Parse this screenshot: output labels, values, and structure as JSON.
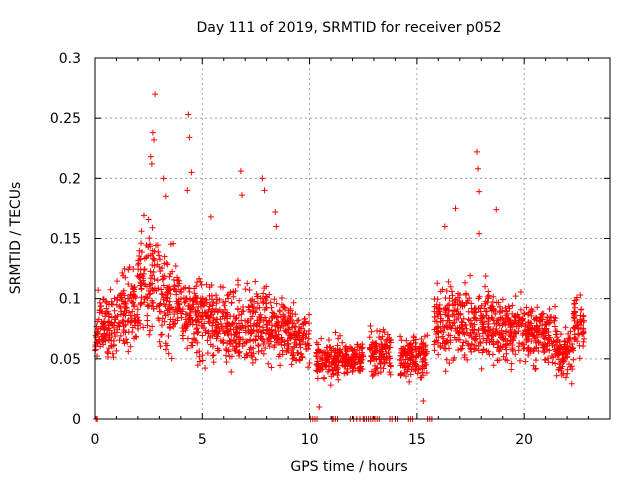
{
  "chart_data": {
    "type": "scatter",
    "title": "Day 111 of 2019, SRMTID for receiver p052",
    "xlabel": "GPS time / hours",
    "ylabel": "SRMTID / TECUs",
    "xlim": [
      0,
      24
    ],
    "ylim": [
      0,
      0.3
    ],
    "xticks": [
      0,
      5,
      10,
      15,
      20
    ],
    "yticks": [
      0,
      0.05,
      0.1,
      0.15,
      0.2,
      0.25,
      0.3
    ],
    "xtick_labels": [
      "0",
      "5",
      "10",
      "15",
      "20"
    ],
    "ytick_labels": [
      "0",
      "0.05",
      "0.1",
      "0.15",
      "0.2",
      "0.25",
      "0.3"
    ],
    "grid": true,
    "marker": "plus",
    "color": "#ff0000",
    "segments": [
      {
        "x_start": 0.0,
        "x_end": 0.1,
        "mean": 0.065,
        "spread": 0.025
      },
      {
        "x_start": 0.1,
        "x_end": 1.0,
        "mean": 0.075,
        "spread": 0.04
      },
      {
        "x_start": 1.0,
        "x_end": 2.0,
        "mean": 0.09,
        "spread": 0.045
      },
      {
        "x_start": 2.0,
        "x_end": 3.0,
        "mean": 0.115,
        "spread": 0.06
      },
      {
        "x_start": 3.0,
        "x_end": 4.0,
        "mean": 0.1,
        "spread": 0.055
      },
      {
        "x_start": 4.0,
        "x_end": 5.0,
        "mean": 0.085,
        "spread": 0.05
      },
      {
        "x_start": 5.0,
        "x_end": 6.0,
        "mean": 0.08,
        "spread": 0.045
      },
      {
        "x_start": 6.0,
        "x_end": 7.0,
        "mean": 0.075,
        "spread": 0.045
      },
      {
        "x_start": 7.0,
        "x_end": 8.0,
        "mean": 0.08,
        "spread": 0.05
      },
      {
        "x_start": 8.0,
        "x_end": 9.0,
        "mean": 0.075,
        "spread": 0.04
      },
      {
        "x_start": 9.0,
        "x_end": 10.0,
        "mean": 0.07,
        "spread": 0.035
      },
      {
        "x_start": 10.3,
        "x_end": 11.5,
        "mean": 0.05,
        "spread": 0.025
      },
      {
        "x_start": 11.5,
        "x_end": 12.5,
        "mean": 0.05,
        "spread": 0.02
      },
      {
        "x_start": 12.8,
        "x_end": 13.8,
        "mean": 0.055,
        "spread": 0.025
      },
      {
        "x_start": 14.2,
        "x_end": 15.5,
        "mean": 0.05,
        "spread": 0.025
      },
      {
        "x_start": 15.8,
        "x_end": 17.0,
        "mean": 0.08,
        "spread": 0.045
      },
      {
        "x_start": 17.0,
        "x_end": 18.5,
        "mean": 0.08,
        "spread": 0.045
      },
      {
        "x_start": 18.5,
        "x_end": 20.0,
        "mean": 0.075,
        "spread": 0.04
      },
      {
        "x_start": 20.0,
        "x_end": 21.5,
        "mean": 0.07,
        "spread": 0.035
      },
      {
        "x_start": 21.5,
        "x_end": 22.3,
        "mean": 0.055,
        "spread": 0.03
      },
      {
        "x_start": 22.3,
        "x_end": 22.8,
        "mean": 0.08,
        "spread": 0.035
      }
    ],
    "outliers": [
      [
        2.8,
        0.27
      ],
      [
        2.7,
        0.238
      ],
      [
        2.75,
        0.232
      ],
      [
        2.6,
        0.218
      ],
      [
        2.65,
        0.212
      ],
      [
        4.35,
        0.253
      ],
      [
        4.4,
        0.234
      ],
      [
        4.5,
        0.205
      ],
      [
        4.3,
        0.19
      ],
      [
        3.3,
        0.185
      ],
      [
        3.2,
        0.2
      ],
      [
        6.8,
        0.206
      ],
      [
        6.85,
        0.186
      ],
      [
        7.8,
        0.2
      ],
      [
        7.9,
        0.19
      ],
      [
        8.4,
        0.172
      ],
      [
        8.45,
        0.16
      ],
      [
        17.8,
        0.222
      ],
      [
        17.85,
        0.208
      ],
      [
        17.9,
        0.189
      ],
      [
        18.7,
        0.174
      ],
      [
        17.9,
        0.154
      ],
      [
        16.3,
        0.16
      ],
      [
        16.8,
        0.175
      ],
      [
        5.4,
        0.168
      ],
      [
        15.3,
        0.015
      ],
      [
        10.45,
        0.01
      ]
    ],
    "zero_points": [
      0.05,
      0.1,
      10.05,
      10.15,
      10.25,
      10.35,
      11.05,
      11.1,
      11.2,
      11.3,
      11.9,
      12.05,
      12.2,
      12.35,
      12.5,
      12.55,
      12.65,
      12.75,
      12.85,
      12.95,
      13.05,
      13.15,
      13.25,
      13.75,
      13.85,
      14.0,
      14.1,
      14.6,
      14.7,
      14.8,
      15.5,
      15.6,
      15.7
    ]
  }
}
